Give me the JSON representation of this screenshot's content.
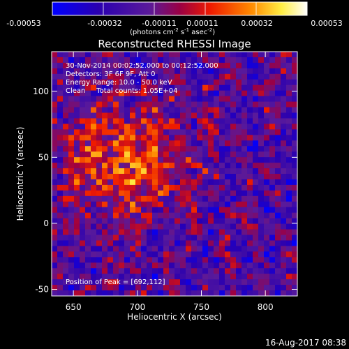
{
  "colorbar": {
    "tick_labels": [
      "-0.00053",
      "-0.00032",
      "-0.00011",
      "0.00011",
      "0.00032",
      "0.00053"
    ],
    "units_main": "(photons cm",
    "units_sup1": "-2",
    "units_mid1": " s",
    "units_sup2": "-1",
    "units_mid2": " asec",
    "units_sup3": "-2",
    "units_end": ")",
    "colors": [
      "#0000ff",
      "#3a00a0",
      "#5a1a9a",
      "#aa0033",
      "#ff2a00",
      "#ff9a00",
      "#ffff66",
      "#ffffff"
    ]
  },
  "annotations": {
    "time_range": "30-Nov-2014 00:02:52.000 to 00:12:52.000",
    "detectors": "Detectors: 3F 6F 9F, Att 0",
    "energy": "Energy Range: 10.0 - 50.0 keV",
    "clean": "Clean     Total counts: 1.05E+04",
    "peak": "Position of Peak = [692,112]"
  },
  "footer": {
    "date_stamp": "16-Aug-2017 08:38"
  },
  "chart_data": {
    "type": "heatmap",
    "title": "Reconstructed RHESSI Image",
    "xlabel": "Heliocentric X (arcsec)",
    "ylabel": "Heliocentric Y (arcsec)",
    "xlim": [
      633,
      825
    ],
    "ylim": [
      -55,
      130
    ],
    "xticks": [
      650,
      700,
      750,
      800
    ],
    "yticks": [
      -50,
      0,
      50,
      100
    ],
    "color_range": [
      -0.00053,
      0.00053
    ],
    "peak_position": [
      692,
      112
    ]
  }
}
